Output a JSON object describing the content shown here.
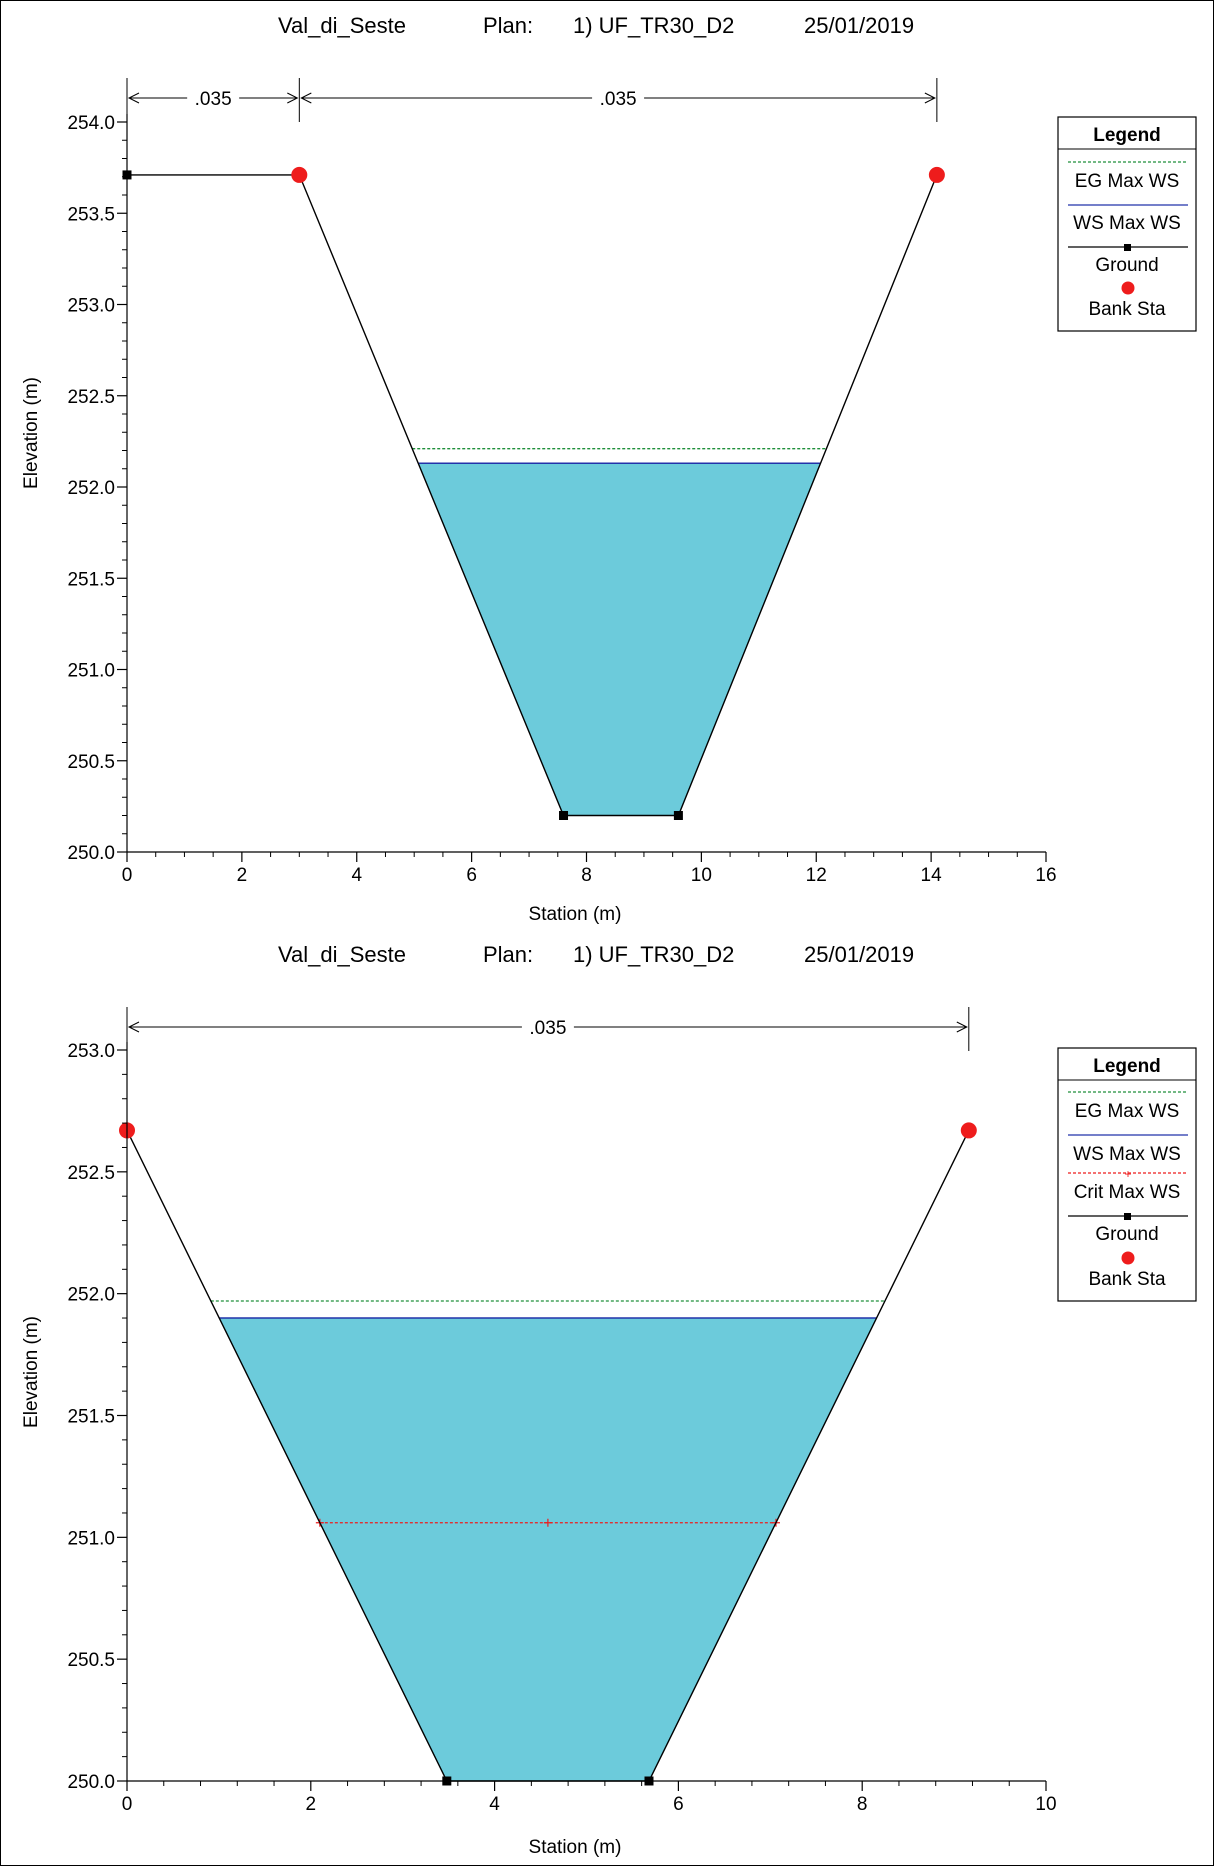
{
  "chart_data": [
    {
      "type": "line",
      "title": {
        "project": "Val_di_Seste",
        "plan_label": "Plan:",
        "plan": "1) UF_TR30_D2",
        "date": "25/01/2019"
      },
      "xlabel": "Station (m)",
      "ylabel": "Elevation (m)",
      "xlim": [
        0,
        16
      ],
      "ylim": [
        250.0,
        254.0
      ],
      "xticks": [
        "0",
        "2",
        "4",
        "6",
        "8",
        "10",
        "12",
        "14",
        "16"
      ],
      "yticks": [
        "250.0",
        "250.5",
        "251.0",
        "251.5",
        "252.0",
        "252.5",
        "253.0",
        "253.5",
        "254.0"
      ],
      "ground": {
        "x": [
          0,
          3.0,
          7.6,
          9.6,
          14.1
        ],
        "y": [
          253.71,
          253.71,
          250.2,
          250.2,
          253.71
        ]
      },
      "ground_markers_x": [
        0,
        7.6,
        9.6
      ],
      "bank_sta": [
        [
          3.0,
          253.71
        ],
        [
          14.1,
          253.71
        ]
      ],
      "ws_max_ws": 252.13,
      "eg_max_ws": 252.21,
      "mannings": [
        {
          "from": 0,
          "to": 3.0,
          "label": ".035"
        },
        {
          "from": 3.0,
          "to": 14.1,
          "label": ".035"
        }
      ],
      "legend": {
        "title": "Legend",
        "position": "top-right",
        "entries": [
          "EG Max WS",
          "WS Max WS",
          "Ground",
          "Bank Sta"
        ]
      },
      "colors": {
        "water": "#6ccbdb",
        "eg": "#1f8f3a",
        "ws": "#2233aa",
        "ground": "#000000",
        "bank": "#ee1c1c"
      }
    },
    {
      "type": "line",
      "title": {
        "project": "Val_di_Seste",
        "plan_label": "Plan:",
        "plan": "1) UF_TR30_D2",
        "date": "25/01/2019"
      },
      "xlabel": "Station (m)",
      "ylabel": "Elevation (m)",
      "xlim": [
        0,
        10
      ],
      "ylim": [
        250.0,
        253.0
      ],
      "xticks": [
        "0",
        "2",
        "4",
        "6",
        "8",
        "10"
      ],
      "yticks": [
        "250.0",
        "250.5",
        "251.0",
        "251.5",
        "252.0",
        "252.5",
        "253.0"
      ],
      "ground": {
        "x": [
          0,
          3.48,
          5.68,
          9.16
        ],
        "y": [
          252.67,
          250.0,
          250.0,
          252.67
        ]
      },
      "ground_markers_x": [
        3.48,
        5.68
      ],
      "bank_sta": [
        [
          0,
          252.67
        ],
        [
          9.16,
          252.67
        ]
      ],
      "ws_max_ws": 251.9,
      "eg_max_ws": 251.97,
      "crit_max_ws": 251.06,
      "crit_mid_x": 4.58,
      "mannings": [
        {
          "from": 0,
          "to": 9.16,
          "label": ".035"
        }
      ],
      "legend": {
        "title": "Legend",
        "position": "top-right",
        "entries": [
          "EG Max WS",
          "WS Max WS",
          "Crit Max WS",
          "Ground",
          "Bank Sta"
        ]
      },
      "colors": {
        "water": "#6ccbdb",
        "eg": "#1f8f3a",
        "ws": "#2233aa",
        "crit": "#ee1c1c",
        "ground": "#000000",
        "bank": "#ee1c1c"
      }
    }
  ]
}
